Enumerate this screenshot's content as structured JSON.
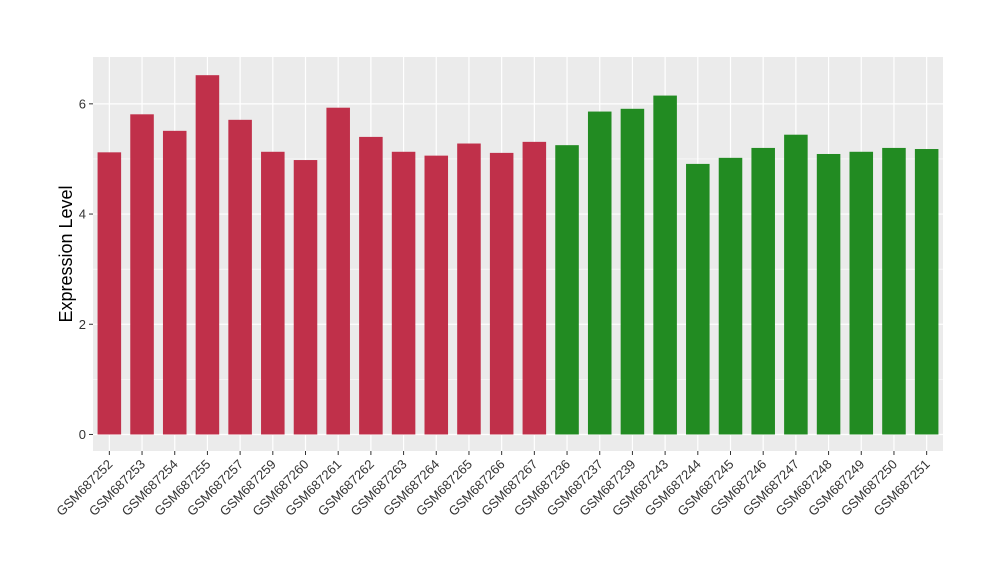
{
  "chart_data": {
    "type": "bar",
    "title": "",
    "xlabel": "",
    "ylabel": "Expression Level",
    "ylim": [
      0,
      6.85
    ],
    "yticks": [
      0,
      2,
      4,
      6
    ],
    "grid": true,
    "legend": "none",
    "panel_background": "#ebebeb",
    "grid_color": "#ffffff",
    "categories": [
      "GSM687252",
      "GSM687253",
      "GSM687254",
      "GSM687255",
      "GSM687257",
      "GSM687259",
      "GSM687260",
      "GSM687261",
      "GSM687262",
      "GSM687263",
      "GSM687264",
      "GSM687265",
      "GSM687266",
      "GSM687267",
      "GSM687236",
      "GSM687237",
      "GSM687239",
      "GSM687243",
      "GSM687244",
      "GSM687245",
      "GSM687246",
      "GSM687247",
      "GSM687248",
      "GSM687249",
      "GSM687250",
      "GSM687251"
    ],
    "values": [
      5.12,
      5.81,
      5.51,
      6.52,
      5.71,
      5.13,
      4.98,
      5.93,
      5.4,
      5.13,
      5.06,
      5.28,
      5.11,
      5.31,
      5.25,
      5.86,
      5.91,
      6.15,
      4.91,
      5.02,
      5.2,
      5.44,
      5.09,
      5.13,
      5.2,
      5.18
    ],
    "bar_colors": [
      "#c0304a",
      "#c0304a",
      "#c0304a",
      "#c0304a",
      "#c0304a",
      "#c0304a",
      "#c0304a",
      "#c0304a",
      "#c0304a",
      "#c0304a",
      "#c0304a",
      "#c0304a",
      "#c0304a",
      "#c0304a",
      "#228b22",
      "#228b22",
      "#228b22",
      "#228b22",
      "#228b22",
      "#228b22",
      "#228b22",
      "#228b22",
      "#228b22",
      "#228b22",
      "#228b22",
      "#228b22"
    ]
  }
}
